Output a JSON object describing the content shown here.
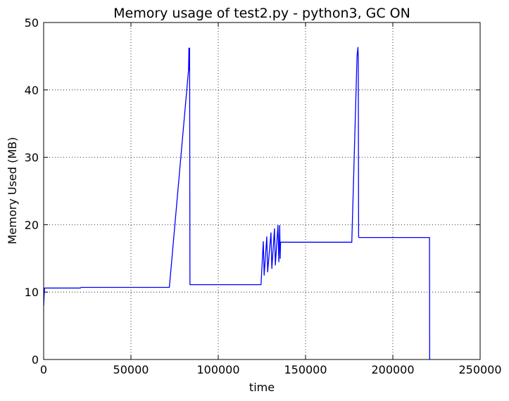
{
  "chart_data": {
    "type": "line",
    "title": "Memory usage of test2.py - python3, GC ON",
    "xlabel": "time",
    "ylabel": "Memory Used (MB)",
    "xlim": [
      0,
      250000
    ],
    "ylim": [
      0,
      50
    ],
    "xticks": [
      0,
      50000,
      100000,
      150000,
      200000,
      250000
    ],
    "yticks": [
      0,
      10,
      20,
      30,
      40,
      50
    ],
    "grid": true,
    "series": [
      {
        "color": "#0000ff",
        "x": [
          0,
          500,
          1000,
          21000,
          21500,
          72000,
          83000,
          83200,
          83400,
          83600,
          83800,
          84000,
          124500,
          125800,
          126300,
          127800,
          128300,
          130200,
          130700,
          132200,
          132700,
          134200,
          134700,
          135200,
          135500,
          135700,
          136000,
          176500,
          179500,
          180000,
          180200,
          180400,
          180600,
          221000,
          221100
        ],
        "y": [
          8,
          10.6,
          10.6,
          10.6,
          10.7,
          10.7,
          43,
          46.2,
          43,
          46.2,
          11.1,
          11.1,
          11.1,
          17.5,
          12.5,
          18.2,
          13,
          18.8,
          13.5,
          19.4,
          14,
          19.9,
          14.5,
          19.9,
          15,
          17.4,
          17.4,
          17.4,
          45,
          46.3,
          45,
          18.2,
          18.1,
          18.1,
          0
        ]
      }
    ]
  }
}
